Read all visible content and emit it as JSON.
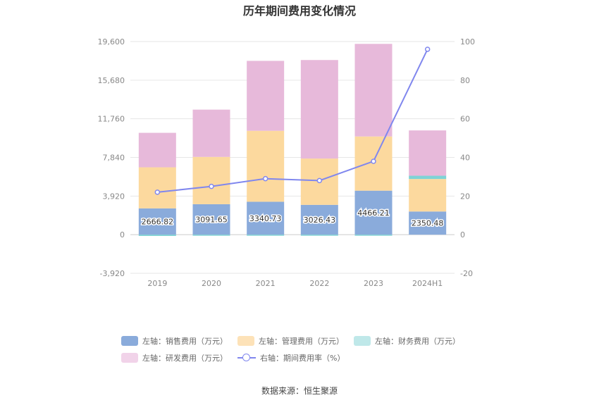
{
  "chart_data": {
    "type": "bar",
    "stacked": true,
    "title": "历年期间费用变化情况",
    "categories": [
      "2019",
      "2020",
      "2021",
      "2022",
      "2023",
      "2024H1"
    ],
    "left_axis": {
      "ylim": [
        -3920,
        19600
      ],
      "ticks": [
        -3920,
        0,
        3920,
        7840,
        11760,
        15680,
        19600
      ],
      "tick_labels": [
        "-3,920",
        "0",
        "3,920",
        "7,840",
        "11,760",
        "15,680",
        "19,600"
      ]
    },
    "right_axis": {
      "ylim": [
        -20,
        100
      ],
      "ticks": [
        -20,
        0,
        20,
        40,
        60,
        80,
        100
      ],
      "tick_labels": [
        "-20",
        "0",
        "20",
        "40",
        "60",
        "80",
        "100"
      ]
    },
    "series": [
      {
        "name": "左轴：销售费用（万元）",
        "axis": "left",
        "kind": "bar",
        "color": "#8aabdb",
        "values": [
          2666.82,
          3091.65,
          3340.73,
          3026.43,
          4466.21,
          2350.48
        ],
        "data_labels": [
          "2666.82",
          "3091.65",
          "3340.73",
          "3026.43",
          "4466.21",
          "2350.48"
        ]
      },
      {
        "name": "左轴：管理费用（万元）",
        "axis": "left",
        "kind": "bar",
        "color": "#fcd99e",
        "values": [
          4170,
          4800,
          7200,
          4700,
          5500,
          3300
        ]
      },
      {
        "name": "左轴：财务费用（万元）",
        "axis": "left",
        "kind": "bar",
        "color": "#7fd3d6",
        "values": [
          -130,
          -100,
          -60,
          -60,
          -50,
          330
        ]
      },
      {
        "name": "左轴：研发费用（万元）",
        "axis": "left",
        "kind": "bar",
        "color": "#e7b9da",
        "values": [
          3500,
          4800,
          7100,
          10000,
          9400,
          4600
        ]
      },
      {
        "name": "右轴：期间费用率（%）",
        "axis": "right",
        "kind": "line",
        "color": "#8087ee",
        "values": [
          22,
          25,
          29,
          28,
          38,
          96
        ]
      }
    ]
  },
  "legend": {
    "row1": [
      {
        "label": "左轴：销售费用（万元）",
        "color": "#8aabdb"
      },
      {
        "label": "左轴：管理费用（万元）",
        "color": "#fde2b8"
      },
      {
        "label": "左轴：财务费用（万元）",
        "color": "#bfe8e9"
      }
    ],
    "row2": [
      {
        "label": "左轴：研发费用（万元）",
        "color": "#f1d3e9"
      },
      {
        "label": "右轴：期间费用率（%）",
        "color": "#8087ee"
      }
    ]
  },
  "source": "数据来源：恒生聚源"
}
